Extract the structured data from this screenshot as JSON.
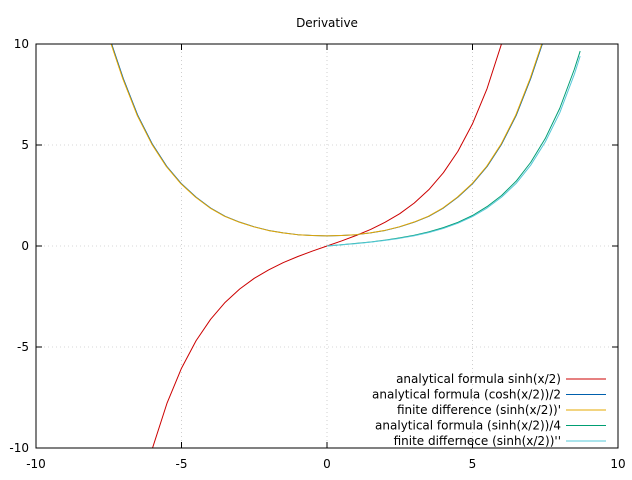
{
  "chart_data": {
    "type": "line",
    "title": "Derivative",
    "xlabel": "",
    "ylabel": "",
    "xlim": [
      -10,
      10
    ],
    "ylim": [
      -10,
      10
    ],
    "x_ticks": [
      "-10",
      "-5",
      "0",
      "5",
      "10"
    ],
    "y_ticks": [
      "10",
      "5",
      "0",
      "-5",
      "-10"
    ],
    "grid": true,
    "legend_position": "bottom-right",
    "series": [
      {
        "name": "analytical formula sinh(x/2)",
        "color": "#cc0000",
        "x": [
          -6.0,
          -5.5,
          -5.0,
          -4.5,
          -4.0,
          -3.5,
          -3.0,
          -2.5,
          -2.0,
          -1.5,
          -1.0,
          -0.5,
          0.0,
          0.5,
          1.0,
          1.5,
          2.0,
          2.5,
          3.0,
          3.5,
          4.0,
          4.5,
          5.0,
          5.5,
          6.0
        ],
        "y": [
          -10.02,
          -7.79,
          -6.05,
          -4.69,
          -3.63,
          -2.79,
          -2.13,
          -1.6,
          -1.18,
          -0.82,
          -0.52,
          -0.25,
          0.0,
          0.25,
          0.52,
          0.82,
          1.18,
          1.6,
          2.13,
          2.79,
          3.63,
          4.69,
          6.05,
          7.79,
          10.02
        ]
      },
      {
        "name": "analytical formula (cosh(x/2))/2",
        "color": "#0060ad",
        "x": [
          -7.4,
          -7.0,
          -6.5,
          -6.0,
          -5.5,
          -5.0,
          -4.5,
          -4.0,
          -3.5,
          -3.0,
          -2.5,
          -2.0,
          -1.5,
          -1.0,
          -0.5,
          0.0,
          0.5,
          1.0,
          1.5,
          2.0,
          2.5,
          3.0,
          3.5,
          4.0,
          4.5,
          5.0,
          5.5,
          6.0,
          6.5,
          7.0,
          7.4
        ],
        "y": [
          10.0,
          8.29,
          6.46,
          5.04,
          3.93,
          3.08,
          2.42,
          1.88,
          1.47,
          1.18,
          0.95,
          0.77,
          0.65,
          0.56,
          0.52,
          0.5,
          0.52,
          0.56,
          0.65,
          0.77,
          0.95,
          1.18,
          1.47,
          1.88,
          2.42,
          3.08,
          3.93,
          5.04,
          6.46,
          8.29,
          10.0
        ]
      },
      {
        "name": "finite difference  (sinh(x/2))'",
        "color": "#e6a800",
        "x": [
          -7.42,
          -7.02,
          -6.52,
          -6.02,
          -5.52,
          -5.02,
          -4.52,
          -4.02,
          -3.52,
          -3.02,
          -2.52,
          -2.02,
          -1.52,
          -1.02,
          -0.52,
          -0.02,
          0.48,
          0.98,
          1.48,
          1.98,
          2.48,
          2.98,
          3.48,
          3.98,
          4.48,
          4.98,
          5.48,
          5.98,
          6.48,
          6.98,
          7.38
        ],
        "y": [
          10.0,
          8.29,
          6.46,
          5.04,
          3.93,
          3.08,
          2.42,
          1.88,
          1.47,
          1.18,
          0.95,
          0.77,
          0.65,
          0.56,
          0.52,
          0.5,
          0.52,
          0.56,
          0.65,
          0.77,
          0.95,
          1.18,
          1.47,
          1.88,
          2.42,
          3.08,
          3.93,
          5.04,
          6.46,
          8.29,
          10.0
        ]
      },
      {
        "name": "analytical formula (sinh(x/2))/4",
        "color": "#009e73",
        "x": [
          0.0,
          0.5,
          1.0,
          1.5,
          2.0,
          2.5,
          3.0,
          3.5,
          4.0,
          4.5,
          5.0,
          5.5,
          6.0,
          6.5,
          7.0,
          7.5,
          8.0,
          8.5,
          8.7
        ],
        "y": [
          0.0,
          0.06,
          0.13,
          0.2,
          0.29,
          0.4,
          0.53,
          0.7,
          0.91,
          1.17,
          1.51,
          1.95,
          2.5,
          3.21,
          4.14,
          5.32,
          6.82,
          8.75,
          9.65
        ]
      },
      {
        "name": "finite differnece  (sinh(x/2))''",
        "color": "#56c8d8",
        "x": [
          0.0,
          0.5,
          1.0,
          1.5,
          2.0,
          2.5,
          3.0,
          3.5,
          4.0,
          4.5,
          5.0,
          5.5,
          6.0,
          6.5,
          7.0,
          7.5,
          8.0,
          8.5,
          8.7
        ],
        "y": [
          0.0,
          0.06,
          0.12,
          0.19,
          0.28,
          0.38,
          0.51,
          0.67,
          0.87,
          1.13,
          1.46,
          1.88,
          2.42,
          3.1,
          4.0,
          5.15,
          6.6,
          8.5,
          9.4
        ]
      }
    ]
  }
}
